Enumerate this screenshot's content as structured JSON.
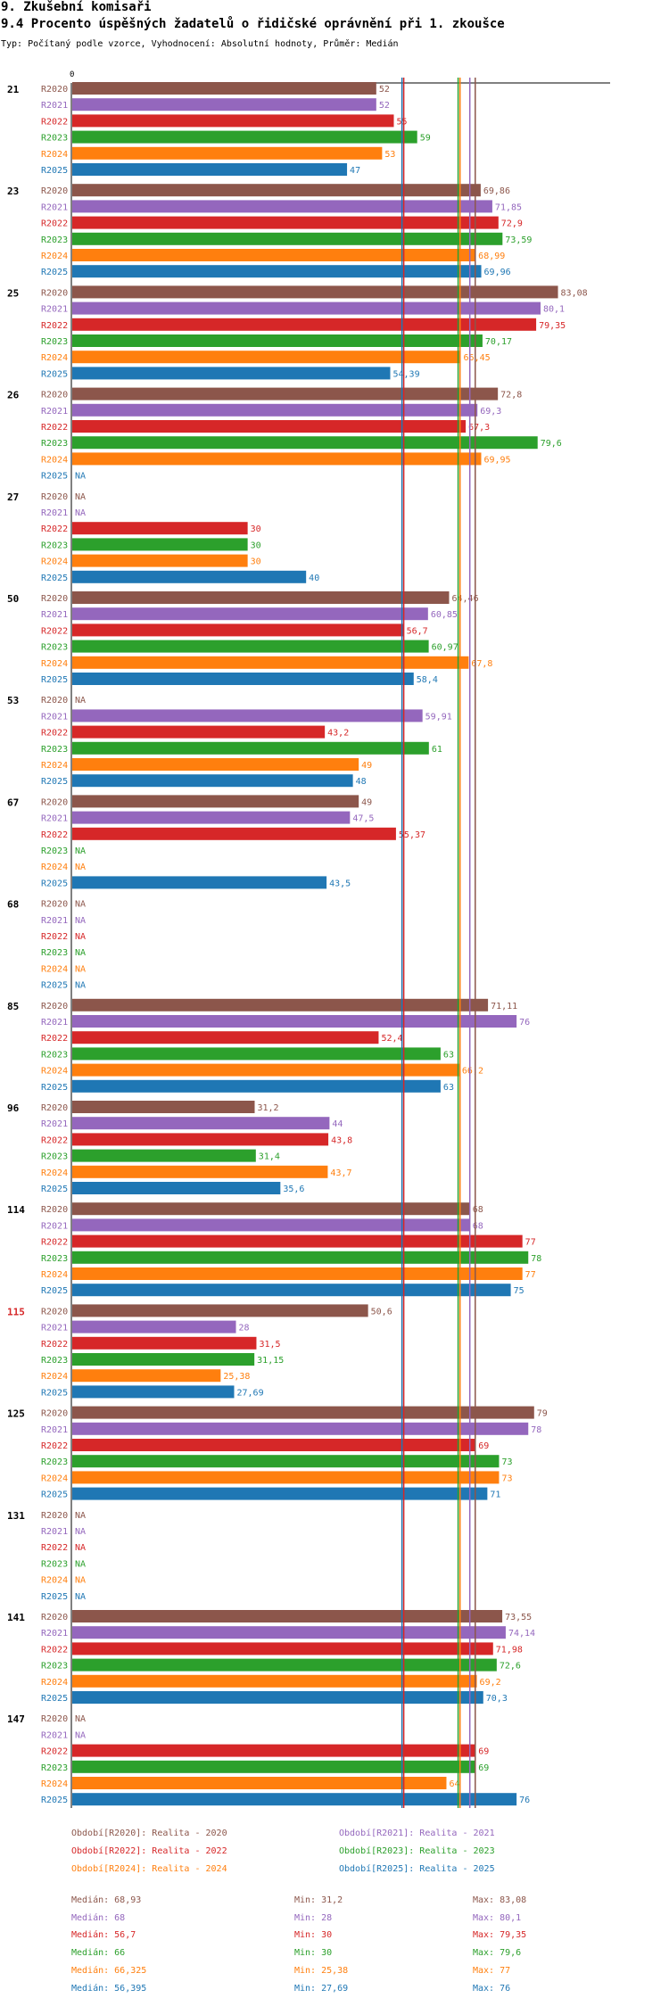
{
  "header": {
    "section": "9. Zkušební komisaři",
    "title": "9.4 Procento úspěšných žadatelů o řidičské oprávnění při 1. zkoušce",
    "subtitle": "Typ: Počítaný podle vzorce, Vyhodnocení: Absolutní hodnoty, Průměr: Medián"
  },
  "chart_data": {
    "type": "bar",
    "orientation": "horizontal",
    "axis_zero_label": "0",
    "xlim": [
      0,
      92
    ],
    "na_label": "NA",
    "series_names": [
      "R2020",
      "R2021",
      "R2022",
      "R2023",
      "R2024",
      "R2025"
    ],
    "series_colors": [
      "#8c564b",
      "#9467bd",
      "#d62728",
      "#2ca02c",
      "#ff7f0e",
      "#1f77b4"
    ],
    "highlight_color": "#d62728",
    "groups": [
      {
        "label": "21",
        "highlight": false,
        "values": [
          52,
          52,
          55,
          59,
          53,
          47
        ],
        "labels": [
          "52",
          "52",
          "55",
          "59",
          "53",
          "47"
        ]
      },
      {
        "label": "23",
        "highlight": false,
        "values": [
          69.86,
          71.85,
          72.9,
          73.59,
          68.99,
          69.96
        ],
        "labels": [
          "69,86",
          "71,85",
          "72,9",
          "73,59",
          "68,99",
          "69,96"
        ]
      },
      {
        "label": "25",
        "highlight": false,
        "values": [
          83.08,
          80.1,
          79.35,
          70.17,
          66.45,
          54.39
        ],
        "labels": [
          "83,08",
          "80,1",
          "79,35",
          "70,17",
          "66,45",
          "54,39"
        ]
      },
      {
        "label": "26",
        "highlight": false,
        "values": [
          72.8,
          69.3,
          67.3,
          79.6,
          69.95,
          null
        ],
        "labels": [
          "72,8",
          "69,3",
          "67,3",
          "79,6",
          "69,95",
          "NA"
        ]
      },
      {
        "label": "27",
        "highlight": false,
        "values": [
          null,
          null,
          30,
          30,
          30,
          40
        ],
        "labels": [
          "NA",
          "NA",
          "30",
          "30",
          "30",
          "40"
        ]
      },
      {
        "label": "50",
        "highlight": false,
        "values": [
          64.46,
          60.85,
          56.7,
          60.97,
          67.8,
          58.4
        ],
        "labels": [
          "64,46",
          "60,85",
          "56,7",
          "60,97",
          "67,8",
          "58,4"
        ]
      },
      {
        "label": "53",
        "highlight": false,
        "values": [
          null,
          59.91,
          43.2,
          61,
          49,
          48
        ],
        "labels": [
          "NA",
          "59,91",
          "43,2",
          "61",
          "49",
          "48"
        ]
      },
      {
        "label": "67",
        "highlight": false,
        "values": [
          49,
          47.5,
          55.37,
          null,
          null,
          43.5
        ],
        "labels": [
          "49",
          "47,5",
          "55,37",
          "NA",
          "NA",
          "43,5"
        ]
      },
      {
        "label": "68",
        "highlight": false,
        "values": [
          null,
          null,
          null,
          null,
          null,
          null
        ],
        "labels": [
          "NA",
          "NA",
          "NA",
          "NA",
          "NA",
          "NA"
        ]
      },
      {
        "label": "85",
        "highlight": false,
        "values": [
          71.11,
          76,
          52.4,
          63,
          66.2,
          63
        ],
        "labels": [
          "71,11",
          "76",
          "52,4",
          "63",
          "66,2",
          "63"
        ]
      },
      {
        "label": "96",
        "highlight": false,
        "values": [
          31.2,
          44,
          43.8,
          31.4,
          43.7,
          35.6
        ],
        "labels": [
          "31,2",
          "44",
          "43,8",
          "31,4",
          "43,7",
          "35,6"
        ]
      },
      {
        "label": "114",
        "highlight": false,
        "values": [
          68,
          68,
          77,
          78,
          77,
          75
        ],
        "labels": [
          "68",
          "68",
          "77",
          "78",
          "77",
          "75"
        ]
      },
      {
        "label": "115",
        "highlight": true,
        "values": [
          50.6,
          28,
          31.5,
          31.15,
          25.38,
          27.69
        ],
        "labels": [
          "50,6",
          "28",
          "31,5",
          "31,15",
          "25,38",
          "27,69"
        ]
      },
      {
        "label": "125",
        "highlight": false,
        "values": [
          79,
          78,
          69,
          73,
          73,
          71
        ],
        "labels": [
          "79",
          "78",
          "69",
          "73",
          "73",
          "71"
        ]
      },
      {
        "label": "131",
        "highlight": false,
        "values": [
          null,
          null,
          null,
          null,
          null,
          null
        ],
        "labels": [
          "NA",
          "NA",
          "NA",
          "NA",
          "NA",
          "NA"
        ]
      },
      {
        "label": "141",
        "highlight": false,
        "values": [
          73.55,
          74.14,
          71.98,
          72.6,
          69.2,
          70.3
        ],
        "labels": [
          "73,55",
          "74,14",
          "71,98",
          "72,6",
          "69,2",
          "70,3"
        ]
      },
      {
        "label": "147",
        "highlight": false,
        "values": [
          null,
          null,
          69,
          69,
          64,
          76
        ],
        "labels": [
          "NA",
          "NA",
          "69",
          "69",
          "64",
          "76"
        ]
      }
    ],
    "median_lines": [
      68.93,
      68,
      56.7,
      66,
      66.325,
      56.395
    ],
    "legend": [
      "Období[R2020]: Realita - 2020",
      "Období[R2021]: Realita - 2021",
      "Období[R2022]: Realita - 2022",
      "Období[R2023]: Realita - 2023",
      "Období[R2024]: Realita - 2024",
      "Období[R2025]: Realita - 2025"
    ],
    "stats": [
      {
        "median": "Medián: 68,93",
        "min": "Min: 31,2",
        "max": "Max: 83,08"
      },
      {
        "median": "Medián: 68",
        "min": "Min: 28",
        "max": "Max: 80,1"
      },
      {
        "median": "Medián: 56,7",
        "min": "Min: 30",
        "max": "Max: 79,35"
      },
      {
        "median": "Medián: 66",
        "min": "Min: 30",
        "max": "Max: 79,6"
      },
      {
        "median": "Medián: 66,325",
        "min": "Min: 25,38",
        "max": "Max: 77"
      },
      {
        "median": "Medián: 56,395",
        "min": "Min: 27,69",
        "max": "Max: 76"
      }
    ]
  }
}
